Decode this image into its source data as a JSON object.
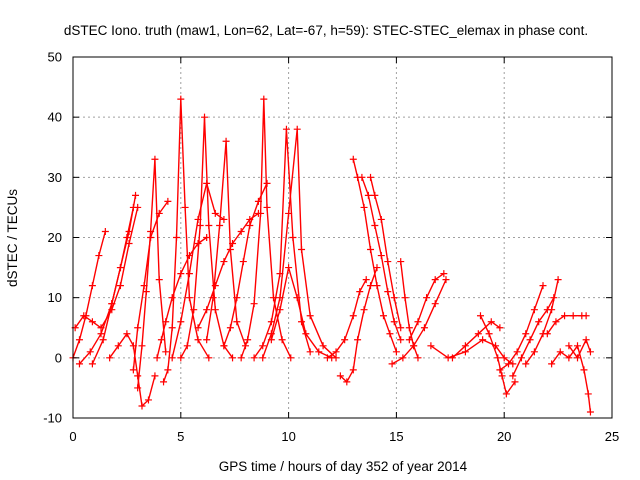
{
  "chart_data": {
    "type": "scatter",
    "title": "dSTEC Iono. truth (maw1, Lon=62, Lat=-67, h=59): STEC-STEC_elemax in phase cont.",
    "xlabel": "GPS time / hours of day 352 of year 2014",
    "ylabel": "dSTEC  / TECUs",
    "xlim": [
      0,
      25
    ],
    "ylim": [
      -10,
      50
    ],
    "xticks": [
      0,
      5,
      10,
      15,
      20,
      25
    ],
    "yticks": [
      -10,
      0,
      10,
      20,
      30,
      40,
      50
    ],
    "grid": true,
    "color": "#ff0000",
    "marker": "plus",
    "series": [
      {
        "x": [
          0.0,
          0.3,
          0.6,
          0.9,
          1.2,
          1.5
        ],
        "y": [
          0.0,
          3.0,
          7.0,
          12.0,
          17.0,
          21.0
        ]
      },
      {
        "x": [
          0.1,
          0.5,
          0.9,
          1.3,
          1.8,
          2.2,
          2.6,
          3.0
        ],
        "y": [
          5.0,
          7.0,
          6.0,
          5.0,
          8.0,
          12.0,
          19.0,
          25.0
        ]
      },
      {
        "x": [
          0.3,
          0.8,
          1.3,
          1.8,
          2.2,
          2.6,
          2.9
        ],
        "y": [
          -1.0,
          1.0,
          4.0,
          9.0,
          15.0,
          21.0,
          27.0
        ]
      },
      {
        "x": [
          0.9,
          1.4,
          1.8,
          2.2,
          2.5,
          2.8
        ],
        "y": [
          -1.0,
          3.0,
          9.0,
          15.0,
          20.0,
          25.0
        ]
      },
      {
        "x": [
          1.7,
          2.1,
          2.5,
          2.8,
          3.0,
          3.2,
          3.5,
          3.8
        ],
        "y": [
          0.0,
          2.0,
          4.0,
          2.0,
          -3.0,
          -8.0,
          -7.0,
          -3.0
        ]
      },
      {
        "x": [
          2.8,
          3.0,
          3.3,
          3.6,
          4.0,
          4.4
        ],
        "y": [
          -2.0,
          5.0,
          12.0,
          20.0,
          24.0,
          26.0
        ]
      },
      {
        "x": [
          3.0,
          3.2,
          3.4,
          3.6,
          3.8,
          4.0,
          4.3
        ],
        "y": [
          -5.0,
          2.0,
          11.0,
          21.0,
          33.0,
          13.0,
          1.0
        ]
      },
      {
        "x": [
          3.9,
          4.1,
          4.3,
          4.6,
          5.0,
          5.4,
          5.8,
          6.2
        ],
        "y": [
          0.0,
          3.0,
          6.0,
          10.0,
          14.0,
          17.0,
          19.0,
          20.0
        ]
      },
      {
        "x": [
          4.2,
          4.4,
          4.6,
          4.8,
          5.0,
          5.2,
          5.4,
          5.8,
          6.3
        ],
        "y": [
          -4.0,
          -2.0,
          5.0,
          20.0,
          43.0,
          25.0,
          10.0,
          3.0,
          0.0
        ]
      },
      {
        "x": [
          4.6,
          5.0,
          5.4,
          5.8,
          6.2,
          6.6,
          7.0
        ],
        "y": [
          0.0,
          6.0,
          14.0,
          23.0,
          29.0,
          24.0,
          23.0
        ]
      },
      {
        "x": [
          5.0,
          5.3,
          5.6,
          5.9,
          6.1,
          6.3,
          6.6,
          7.0,
          7.4
        ],
        "y": [
          0.0,
          2.0,
          8.0,
          22.0,
          40.0,
          22.0,
          8.0,
          2.0,
          0.0
        ]
      },
      {
        "x": [
          6.2,
          6.5,
          6.8,
          7.1,
          7.3,
          7.6,
          8.0
        ],
        "y": [
          3.0,
          10.0,
          22.0,
          36.0,
          18.0,
          6.0,
          2.0
        ]
      },
      {
        "x": [
          5.8,
          6.2,
          6.6,
          7.0,
          7.4,
          7.8,
          8.2,
          8.6
        ],
        "y": [
          5.0,
          8.0,
          12.0,
          16.0,
          19.0,
          21.0,
          23.0,
          24.0
        ]
      },
      {
        "x": [
          7.0,
          7.3,
          7.6,
          7.9,
          8.2,
          8.6,
          9.0
        ],
        "y": [
          2.0,
          5.0,
          10.0,
          16.0,
          22.0,
          26.0,
          29.0
        ]
      },
      {
        "x": [
          7.8,
          8.1,
          8.4,
          8.7,
          8.85,
          9.0,
          9.3,
          9.7,
          10.1
        ],
        "y": [
          0.0,
          3.0,
          9.0,
          24.0,
          43.0,
          25.0,
          10.0,
          3.0,
          0.0
        ]
      },
      {
        "x": [
          8.4,
          8.8,
          9.2,
          9.6,
          9.9,
          10.2,
          10.6,
          11.0
        ],
        "y": [
          0.0,
          2.0,
          6.0,
          14.0,
          38.0,
          20.0,
          6.0,
          1.0
        ]
      },
      {
        "x": [
          8.8,
          9.2,
          9.6,
          10.0,
          10.4,
          10.6,
          11.0,
          11.6,
          12.2
        ],
        "y": [
          0.0,
          4.0,
          10.0,
          24.0,
          38.0,
          18.0,
          7.0,
          2.0,
          0.0
        ]
      },
      {
        "x": [
          9.2,
          9.6,
          10.0,
          10.4,
          10.8,
          11.4,
          12.0
        ],
        "y": [
          3.0,
          8.0,
          15.0,
          10.0,
          4.0,
          1.0,
          0.0
        ]
      },
      {
        "x": [
          11.8,
          12.2,
          12.6,
          13.0,
          13.3,
          13.6
        ],
        "y": [
          0.0,
          1.0,
          3.0,
          7.0,
          11.0,
          13.0
        ]
      },
      {
        "x": [
          12.4,
          12.7,
          13.0,
          13.2,
          13.5,
          13.8,
          14.1
        ],
        "y": [
          -3.0,
          -4.0,
          -2.0,
          3.0,
          8.0,
          12.0,
          15.0
        ]
      },
      {
        "x": [
          13.0,
          13.2,
          13.5,
          13.8,
          14.1,
          14.4,
          14.7,
          15.0
        ],
        "y": [
          33.0,
          30.0,
          25.0,
          18.0,
          12.0,
          7.0,
          4.0,
          1.0
        ]
      },
      {
        "x": [
          13.4,
          13.7,
          14.0,
          14.3,
          14.6,
          14.9,
          15.2
        ],
        "y": [
          30.0,
          27.0,
          22.0,
          17.0,
          11.0,
          6.0,
          3.0
        ]
      },
      {
        "x": [
          13.8,
          14.0,
          14.3,
          14.6,
          14.9,
          15.2
        ],
        "y": [
          30.0,
          27.0,
          23.0,
          16.0,
          10.0,
          5.0
        ]
      },
      {
        "x": [
          14.8,
          15.3,
          15.8,
          16.3,
          16.8,
          17.3
        ],
        "y": [
          -1.0,
          0.0,
          2.0,
          5.0,
          9.0,
          13.0
        ]
      },
      {
        "x": [
          15.2,
          15.4,
          15.6,
          15.8,
          16.0
        ],
        "y": [
          16.0,
          10.0,
          5.0,
          2.0,
          0.0
        ]
      },
      {
        "x": [
          15.6,
          16.0,
          16.4,
          16.8,
          17.2
        ],
        "y": [
          3.0,
          6.0,
          10.0,
          13.0,
          14.0
        ]
      },
      {
        "x": [
          16.6,
          17.4,
          18.2,
          19.0,
          19.6,
          20.0,
          20.4
        ],
        "y": [
          2.0,
          0.0,
          1.0,
          3.0,
          2.0,
          0.0,
          -1.0
        ]
      },
      {
        "x": [
          17.6,
          18.2,
          18.8,
          19.4,
          19.8
        ],
        "y": [
          0.0,
          2.0,
          4.0,
          6.0,
          5.0
        ]
      },
      {
        "x": [
          18.9,
          19.3,
          19.7,
          19.9,
          20.1,
          20.5
        ],
        "y": [
          7.0,
          4.0,
          0.0,
          -3.0,
          -6.0,
          -4.0
        ]
      },
      {
        "x": [
          19.8,
          20.2,
          20.6,
          21.0,
          21.4,
          21.8
        ],
        "y": [
          -2.0,
          -1.0,
          1.0,
          4.0,
          8.0,
          12.0
        ]
      },
      {
        "x": [
          20.4,
          20.8,
          21.2,
          21.6,
          22.0,
          22.3
        ],
        "y": [
          -3.0,
          0.0,
          3.0,
          6.0,
          8.0,
          10.0
        ]
      },
      {
        "x": [
          21.0,
          21.4,
          21.8,
          22.2,
          22.5
        ],
        "y": [
          -1.0,
          1.0,
          4.0,
          8.0,
          13.0
        ]
      },
      {
        "x": [
          22.0,
          22.4,
          22.8,
          23.2,
          23.6,
          23.8
        ],
        "y": [
          4.0,
          6.0,
          7.0,
          7.0,
          7.0,
          7.0
        ]
      },
      {
        "x": [
          22.2,
          22.6,
          23.0,
          23.4,
          23.7,
          23.9,
          24.0
        ],
        "y": [
          -1.0,
          1.0,
          0.0,
          2.0,
          -2.0,
          -6.0,
          -9.0
        ]
      },
      {
        "x": [
          23.0,
          23.4,
          23.8,
          24.0
        ],
        "y": [
          2.0,
          0.0,
          3.0,
          1.0
        ]
      }
    ]
  }
}
